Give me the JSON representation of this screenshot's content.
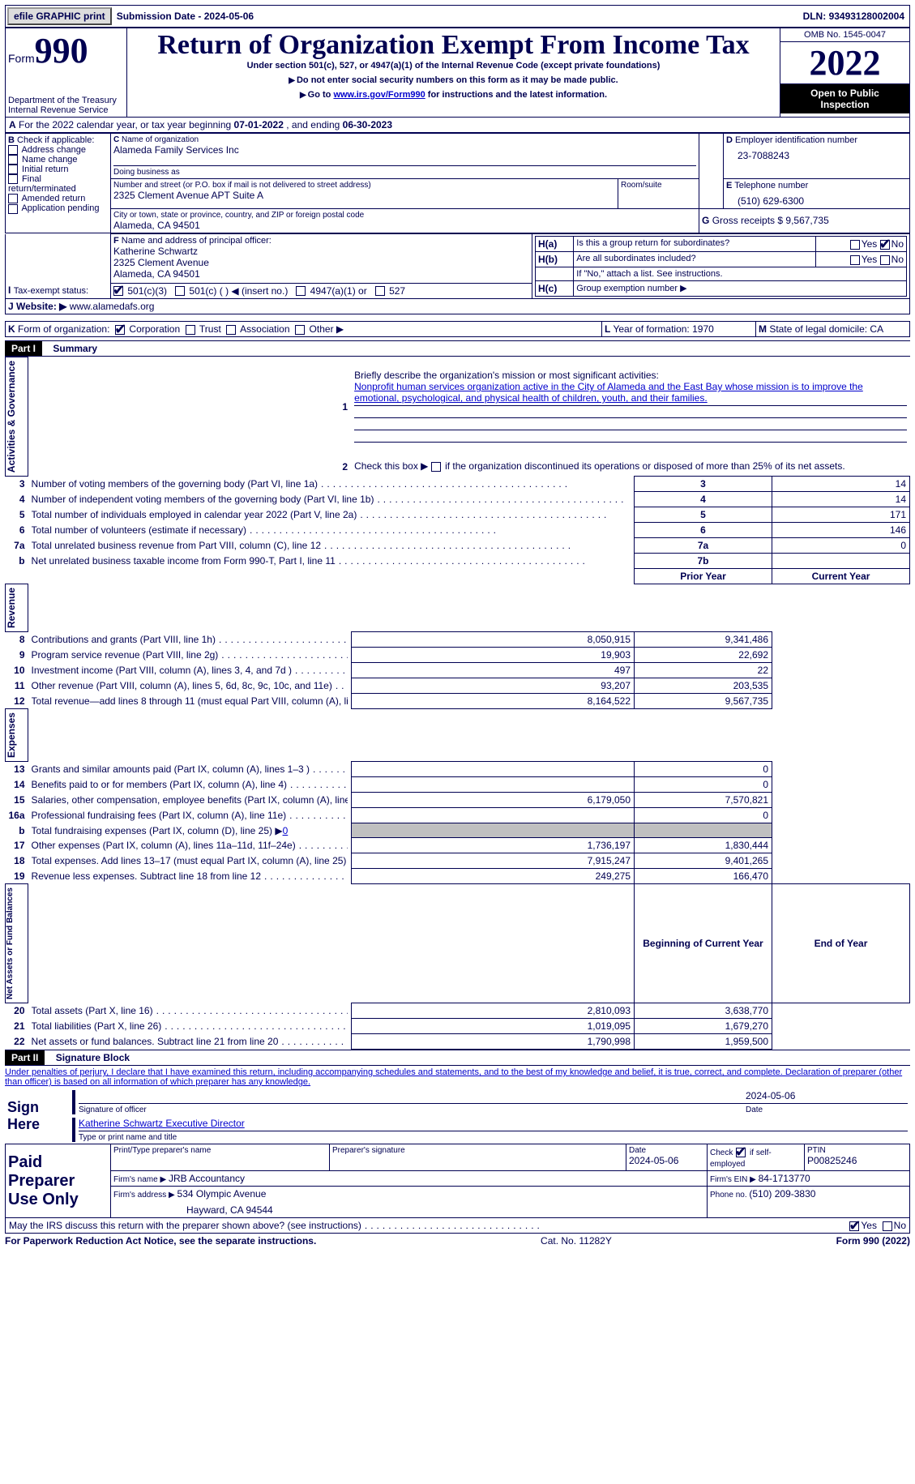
{
  "topbar": {
    "efile": "efile GRAPHIC print",
    "subdate_label": "Submission Date - ",
    "subdate": "2024-05-06",
    "dln_label": "DLN: ",
    "dln": "93493128002004"
  },
  "header": {
    "form_label": "Form",
    "form_no": "990",
    "dept1": "Department of the Treasury",
    "dept2": "Internal Revenue Service",
    "title": "Return of Organization Exempt From Income Tax",
    "subtitle": "Under section 501(c), 527, or 4947(a)(1) of the Internal Revenue Code (except private foundations)",
    "note1": "Do not enter social security numbers on this form as it may be made public.",
    "note2a": "Go to ",
    "note2link": "www.irs.gov/Form990",
    "note2b": " for instructions and the latest information.",
    "omb": "OMB No. 1545-0047",
    "year": "2022",
    "open1": "Open to Public",
    "open2": "Inspection"
  },
  "A": {
    "text": "For the 2022 calendar year, or tax year beginning ",
    "begin": "07-01-2022",
    "mid": " , and ending ",
    "end": "06-30-2023"
  },
  "B": {
    "label": "Check if applicable:",
    "opts": [
      "Address change",
      "Name change",
      "Initial return",
      "Final return/terminated",
      "Amended return",
      "Application pending"
    ]
  },
  "C": {
    "name_lbl": "Name of organization",
    "name": "Alameda Family Services Inc",
    "dba_lbl": "Doing business as",
    "dba": "",
    "addr_lbl": "Number and street (or P.O. box if mail is not delivered to street address)",
    "suite_lbl": "Room/suite",
    "addr": "2325 Clement Avenue APT Suite A",
    "city_lbl": "City or town, state or province, country, and ZIP or foreign postal code",
    "city": "Alameda, CA  94501"
  },
  "D": {
    "lbl": "Employer identification number",
    "val": "23-7088243"
  },
  "E": {
    "lbl": "Telephone number",
    "val": "(510) 629-6300"
  },
  "G": {
    "lbl": "Gross receipts $ ",
    "val": "9,567,735"
  },
  "F": {
    "lbl": "Name and address of principal officer:",
    "name": "Katherine Schwartz",
    "addr1": "2325 Clement Avenue",
    "addr2": "Alameda, CA  94501"
  },
  "H": {
    "a": "Is this a group return for subordinates?",
    "b": "Are all subordinates included?",
    "bnote": "If \"No,\" attach a list. See instructions.",
    "c": "Group exemption number ▶",
    "yes": "Yes",
    "no": "No"
  },
  "I": {
    "lbl": "Tax-exempt status:",
    "o1": "501(c)(3)",
    "o2": "501(c) (  ) ◀ (insert no.)",
    "o3": "4947(a)(1) or",
    "o4": "527"
  },
  "J": {
    "lbl": "Website: ▶",
    "val": "www.alamedafs.org"
  },
  "K": {
    "lbl": "Form of organization:",
    "opts": [
      "Corporation",
      "Trust",
      "Association",
      "Other ▶"
    ]
  },
  "L": {
    "lbl": "Year of formation: ",
    "val": "1970"
  },
  "M": {
    "lbl": "State of legal domicile: ",
    "val": "CA"
  },
  "part1": {
    "hdr": "Part I",
    "title": "Summary",
    "side": {
      "ag": "Activities & Governance",
      "rev": "Revenue",
      "exp": "Expenses",
      "na": "Net Assets or Fund Balances"
    },
    "l1lbl": "Briefly describe the organization's mission or most significant activities:",
    "l1": "Nonprofit human services organization active in the City of Alameda and the East Bay whose mission is to improve the emotional, psychological, and physical health of children, youth, and their families.",
    "l2": "Check this box ▶",
    "l2b": " if the organization discontinued its operations or disposed of more than 25% of its net assets.",
    "rows_top": [
      {
        "n": "3",
        "t": "Number of voting members of the governing body (Part VI, line 1a)",
        "box": "3",
        "v": "14"
      },
      {
        "n": "4",
        "t": "Number of independent voting members of the governing body (Part VI, line 1b)",
        "box": "4",
        "v": "14"
      },
      {
        "n": "5",
        "t": "Total number of individuals employed in calendar year 2022 (Part V, line 2a)",
        "box": "5",
        "v": "171"
      },
      {
        "n": "6",
        "t": "Total number of volunteers (estimate if necessary)",
        "box": "6",
        "v": "146"
      },
      {
        "n": "7a",
        "t": "Total unrelated business revenue from Part VIII, column (C), line 12",
        "box": "7a",
        "v": "0"
      },
      {
        "n": "b",
        "t": "Net unrelated business taxable income from Form 990-T, Part I, line 11",
        "box": "7b",
        "v": ""
      }
    ],
    "col_prior": "Prior Year",
    "col_curr": "Current Year",
    "rows_rev": [
      {
        "n": "8",
        "t": "Contributions and grants (Part VIII, line 1h)",
        "p": "8,050,915",
        "c": "9,341,486"
      },
      {
        "n": "9",
        "t": "Program service revenue (Part VIII, line 2g)",
        "p": "19,903",
        "c": "22,692"
      },
      {
        "n": "10",
        "t": "Investment income (Part VIII, column (A), lines 3, 4, and 7d )",
        "p": "497",
        "c": "22"
      },
      {
        "n": "11",
        "t": "Other revenue (Part VIII, column (A), lines 5, 6d, 8c, 9c, 10c, and 11e)",
        "p": "93,207",
        "c": "203,535"
      },
      {
        "n": "12",
        "t": "Total revenue—add lines 8 through 11 (must equal Part VIII, column (A), line 12)",
        "p": "8,164,522",
        "c": "9,567,735"
      }
    ],
    "rows_exp": [
      {
        "n": "13",
        "t": "Grants and similar amounts paid (Part IX, column (A), lines 1–3 )",
        "p": "",
        "c": "0"
      },
      {
        "n": "14",
        "t": "Benefits paid to or for members (Part IX, column (A), line 4)",
        "p": "",
        "c": "0"
      },
      {
        "n": "15",
        "t": "Salaries, other compensation, employee benefits (Part IX, column (A), lines 5–10)",
        "p": "6,179,050",
        "c": "7,570,821"
      },
      {
        "n": "16a",
        "t": "Professional fundraising fees (Part IX, column (A), line 11e)",
        "p": "",
        "c": "0"
      },
      {
        "n": "b",
        "t": "Total fundraising expenses (Part IX, column (D), line 25) ▶",
        "p": "GRAY",
        "c": "GRAY",
        "extra": "0"
      },
      {
        "n": "17",
        "t": "Other expenses (Part IX, column (A), lines 11a–11d, 11f–24e)",
        "p": "1,736,197",
        "c": "1,830,444"
      },
      {
        "n": "18",
        "t": "Total expenses. Add lines 13–17 (must equal Part IX, column (A), line 25)",
        "p": "7,915,247",
        "c": "9,401,265"
      },
      {
        "n": "19",
        "t": "Revenue less expenses. Subtract line 18 from line 12",
        "p": "249,275",
        "c": "166,470"
      }
    ],
    "col_beg": "Beginning of Current Year",
    "col_end": "End of Year",
    "rows_na": [
      {
        "n": "20",
        "t": "Total assets (Part X, line 16)",
        "p": "2,810,093",
        "c": "3,638,770"
      },
      {
        "n": "21",
        "t": "Total liabilities (Part X, line 26)",
        "p": "1,019,095",
        "c": "1,679,270"
      },
      {
        "n": "22",
        "t": "Net assets or fund balances. Subtract line 21 from line 20",
        "p": "1,790,998",
        "c": "1,959,500"
      }
    ]
  },
  "part2": {
    "hdr": "Part II",
    "title": "Signature Block",
    "decl": "Under penalties of perjury, I declare that I have examined this return, including accompanying schedules and statements, and to the best of my knowledge and belief, it is true, correct, and complete. Declaration of preparer (other than officer) is based on all information of which preparer has any knowledge.",
    "sign_here": "Sign Here",
    "sig_officer": "Signature of officer",
    "sig_date": "Date",
    "sig_date_v": "2024-05-06",
    "officer": "Katherine Schwartz  Executive Director",
    "type_name": "Type or print name and title",
    "paid": "Paid Preparer Use Only",
    "prep_name_lbl": "Print/Type preparer's name",
    "prep_sig_lbl": "Preparer's signature",
    "date_lbl": "Date",
    "date_v": "2024-05-06",
    "check_lbl": "Check",
    "self_emp": "if self-employed",
    "ptin_lbl": "PTIN",
    "ptin": "P00825246",
    "firm_name_lbl": "Firm's name   ▶ ",
    "firm_name": "JRB Accountancy",
    "firm_ein_lbl": "Firm's EIN ▶ ",
    "firm_ein": "84-1713770",
    "firm_addr_lbl": "Firm's address ▶ ",
    "firm_addr1": "534 Olympic Avenue",
    "firm_addr2": "Hayward, CA  94544",
    "phone_lbl": "Phone no. ",
    "phone": "(510) 209-3830",
    "may": "May the IRS discuss this return with the preparer shown above? (see instructions)",
    "yes": "Yes",
    "no": "No"
  },
  "footer": {
    "left": "For Paperwork Reduction Act Notice, see the separate instructions.",
    "mid": "Cat. No. 11282Y",
    "right": "Form 990 (2022)"
  }
}
